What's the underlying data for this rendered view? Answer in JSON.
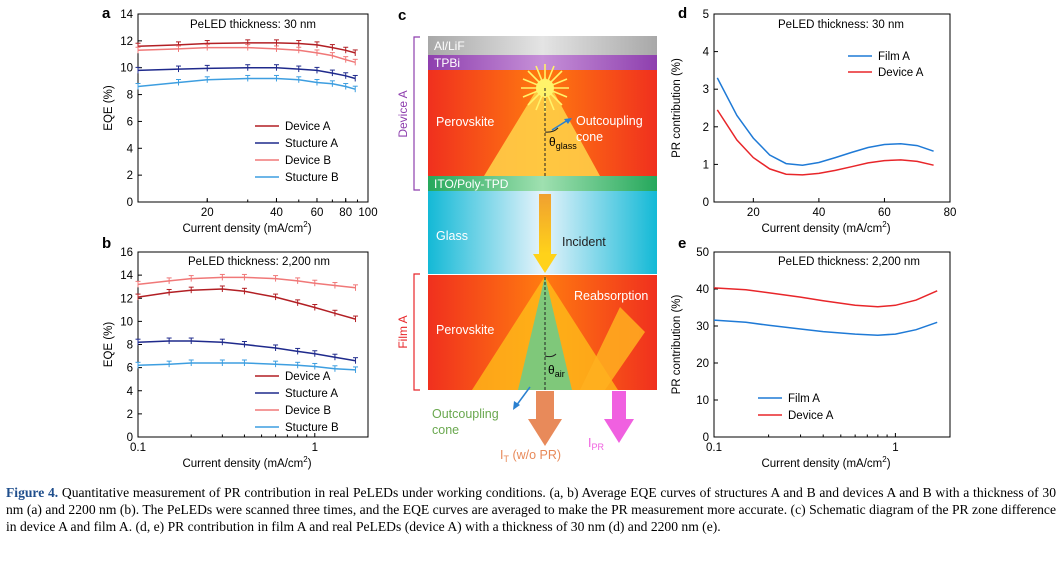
{
  "panels": {
    "a": {
      "letter": "a",
      "note": "PeLED thickness: 30 nm",
      "ylabel": "EQE (%)",
      "xlabel": "Current density (mA/cm",
      "legend": [
        "Device A",
        "Stucture A",
        "Device B",
        "Stucture B"
      ]
    },
    "b": {
      "letter": "b",
      "note": "PeLED thickness: 2,200 nm",
      "ylabel": "EQE (%)",
      "xlabel": "Current density (mA/cm",
      "legend": [
        "Device A",
        "Stucture A",
        "Device B",
        "Stucture B"
      ]
    },
    "c": {
      "letter": "c",
      "device_label": "Device A",
      "film_label": "Film A",
      "layers": {
        "al": "Al/LiF",
        "tpbi": "TPBi",
        "perovskite_top": "Perovskite",
        "ito": "ITO/Poly-TPD",
        "glass": "Glass",
        "perovskite_bottom": "Perovskite"
      },
      "labels": {
        "outcoupling_top": "Outcoupling",
        "cone_top": "cone",
        "theta_glass": "θ",
        "glass_sub": "glass",
        "incident": "Incident",
        "reabsorption": "Reabsorption",
        "theta_air": "θ",
        "air_sub": "air",
        "outcoupling_bottom": "Outcoupling",
        "cone_bottom": "cone",
        "it": "I",
        "it_sub": "T",
        "it_rest": " (w/o PR)",
        "ipr": "I",
        "ipr_sub": "PR"
      }
    },
    "d": {
      "letter": "d",
      "note": "PeLED thickness: 30 nm",
      "ylabel": "PR contribution (%)",
      "xlabel": "Current density (mA/cm",
      "legend": [
        "Film A",
        "Device A"
      ]
    },
    "e": {
      "letter": "e",
      "note": "PeLED thickness: 2,200 nm",
      "ylabel": "PR contribution (%)",
      "xlabel": "Current density (mA/cm",
      "legend": [
        "Film A",
        "Device A"
      ]
    }
  },
  "colors": {
    "deviceA": "#b21f24",
    "structureA": "#1f2a8c",
    "deviceB": "#f07878",
    "structureB": "#3d9ee0",
    "filmA": "#1f7ad6",
    "devA_pr": "#e8262a"
  },
  "chart_data": [
    {
      "type": "line",
      "panel": "a",
      "xscale": "log",
      "xlim": [
        10,
        100
      ],
      "ylim": [
        0,
        14
      ],
      "xticks": [
        20,
        40,
        60,
        80,
        100
      ],
      "yticks": [
        0,
        2,
        4,
        6,
        8,
        10,
        12,
        14
      ],
      "series": [
        {
          "name": "Device A",
          "x": [
            10,
            15,
            20,
            30,
            40,
            50,
            60,
            70,
            80,
            88
          ],
          "y": [
            11.6,
            11.7,
            11.8,
            11.85,
            11.85,
            11.8,
            11.7,
            11.5,
            11.3,
            11.1
          ]
        },
        {
          "name": "Stucture A",
          "x": [
            10,
            15,
            20,
            30,
            40,
            50,
            60,
            70,
            80,
            88
          ],
          "y": [
            9.8,
            9.9,
            9.95,
            10.0,
            10.0,
            9.9,
            9.8,
            9.6,
            9.4,
            9.2
          ]
        },
        {
          "name": "Device B",
          "x": [
            10,
            15,
            20,
            30,
            40,
            50,
            60,
            70,
            80,
            88
          ],
          "y": [
            11.3,
            11.4,
            11.5,
            11.5,
            11.4,
            11.3,
            11.1,
            10.9,
            10.6,
            10.4
          ]
        },
        {
          "name": "Stucture B",
          "x": [
            10,
            15,
            20,
            30,
            40,
            50,
            60,
            70,
            80,
            88
          ],
          "y": [
            8.6,
            8.9,
            9.1,
            9.2,
            9.2,
            9.1,
            8.9,
            8.8,
            8.6,
            8.4
          ]
        }
      ]
    },
    {
      "type": "line",
      "panel": "b",
      "xscale": "log",
      "xlim": [
        0.1,
        2
      ],
      "ylim": [
        0,
        16
      ],
      "xticks": [
        0.1,
        1
      ],
      "yticks": [
        0,
        2,
        4,
        6,
        8,
        10,
        12,
        14,
        16
      ],
      "series": [
        {
          "name": "Device A",
          "x": [
            0.1,
            0.15,
            0.2,
            0.3,
            0.4,
            0.6,
            0.8,
            1,
            1.3,
            1.7
          ],
          "y": [
            12.1,
            12.5,
            12.7,
            12.8,
            12.6,
            12.1,
            11.6,
            11.2,
            10.7,
            10.2
          ]
        },
        {
          "name": "Stucture A",
          "x": [
            0.1,
            0.15,
            0.2,
            0.3,
            0.4,
            0.6,
            0.8,
            1,
            1.3,
            1.7
          ],
          "y": [
            8.2,
            8.3,
            8.3,
            8.2,
            8.0,
            7.7,
            7.4,
            7.2,
            6.9,
            6.6
          ]
        },
        {
          "name": "Device B",
          "x": [
            0.1,
            0.15,
            0.2,
            0.3,
            0.4,
            0.6,
            0.8,
            1,
            1.3,
            1.7
          ],
          "y": [
            13.2,
            13.5,
            13.7,
            13.8,
            13.8,
            13.7,
            13.5,
            13.3,
            13.1,
            12.9
          ]
        },
        {
          "name": "Stucture B",
          "x": [
            0.1,
            0.15,
            0.2,
            0.3,
            0.4,
            0.6,
            0.8,
            1,
            1.3,
            1.7
          ],
          "y": [
            6.2,
            6.3,
            6.4,
            6.4,
            6.4,
            6.3,
            6.2,
            6.1,
            5.9,
            5.8
          ]
        }
      ]
    },
    {
      "type": "line",
      "panel": "d",
      "xscale": "linear",
      "xlim": [
        8,
        80
      ],
      "ylim": [
        0,
        5
      ],
      "xticks": [
        20,
        40,
        60,
        80
      ],
      "yticks": [
        0,
        1,
        2,
        3,
        4,
        5
      ],
      "series": [
        {
          "name": "Film A",
          "x": [
            9,
            15,
            20,
            25,
            30,
            35,
            40,
            45,
            50,
            55,
            60,
            65,
            70,
            75
          ],
          "y": [
            3.3,
            2.3,
            1.7,
            1.25,
            1.02,
            0.98,
            1.05,
            1.18,
            1.32,
            1.45,
            1.53,
            1.55,
            1.5,
            1.35
          ]
        },
        {
          "name": "Device A",
          "x": [
            9,
            15,
            20,
            25,
            30,
            35,
            40,
            45,
            50,
            55,
            60,
            65,
            70,
            75
          ],
          "y": [
            2.45,
            1.65,
            1.18,
            0.88,
            0.74,
            0.72,
            0.76,
            0.84,
            0.94,
            1.04,
            1.1,
            1.12,
            1.08,
            0.98
          ]
        }
      ]
    },
    {
      "type": "line",
      "panel": "e",
      "xscale": "log",
      "xlim": [
        0.1,
        2
      ],
      "ylim": [
        0,
        50
      ],
      "xticks": [
        0.1,
        1
      ],
      "yticks": [
        0,
        10,
        20,
        30,
        40,
        50
      ],
      "series": [
        {
          "name": "Film A",
          "x": [
            0.1,
            0.15,
            0.2,
            0.3,
            0.4,
            0.6,
            0.8,
            1,
            1.3,
            1.7
          ],
          "y": [
            31.6,
            31.0,
            30.2,
            29.2,
            28.5,
            27.8,
            27.5,
            27.8,
            29.0,
            31.0
          ]
        },
        {
          "name": "Device A",
          "x": [
            0.1,
            0.15,
            0.2,
            0.3,
            0.4,
            0.6,
            0.8,
            1,
            1.3,
            1.7
          ],
          "y": [
            40.3,
            39.8,
            39.0,
            37.8,
            36.8,
            35.6,
            35.2,
            35.6,
            37.0,
            39.5
          ]
        }
      ]
    }
  ],
  "caption": {
    "fig": "Figure 4.",
    "text": " Quantitative measurement of PR contribution in real PeLEDs under working conditions. (a, b) Average EQE curves of structures A and B and devices A and B with a thickness of 30 nm (a) and 2200 nm (b). The PeLEDs were scanned three times, and the EQE curves are averaged to make the PR measurement more accurate. (c) Schematic diagram of the PR zone difference in device A and film A. (d, e) PR contribution in film A and real PeLEDs (device A) with a thickness of 30 nm (d) and 2200 nm (e)."
  }
}
